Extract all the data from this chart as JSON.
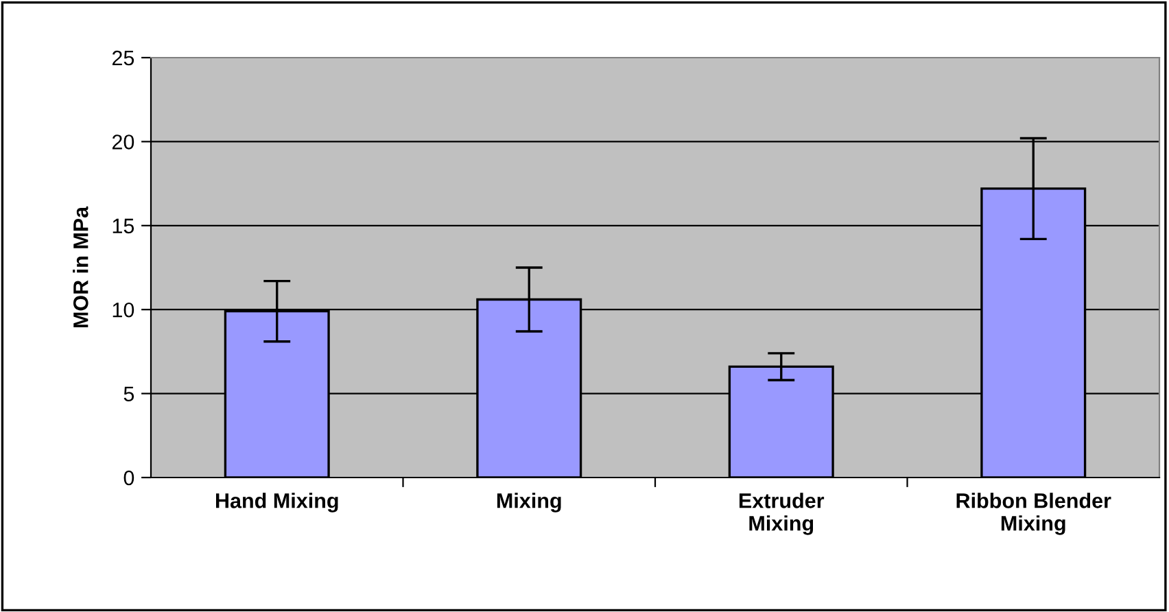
{
  "chart_data": {
    "type": "bar",
    "ylabel": "MOR in MPa",
    "categories": [
      "Hand Mixing",
      "Mixing",
      "Extruder\nMixing",
      "Ribbon Blender\nMixing"
    ],
    "values": [
      9.9,
      10.6,
      6.6,
      17.2
    ],
    "errors": [
      1.8,
      1.9,
      0.8,
      3.0
    ],
    "color": "#9999ff",
    "ylim": [
      0,
      25
    ],
    "yticks": [
      0,
      5,
      10,
      15,
      20,
      25
    ],
    "grid": "y"
  }
}
